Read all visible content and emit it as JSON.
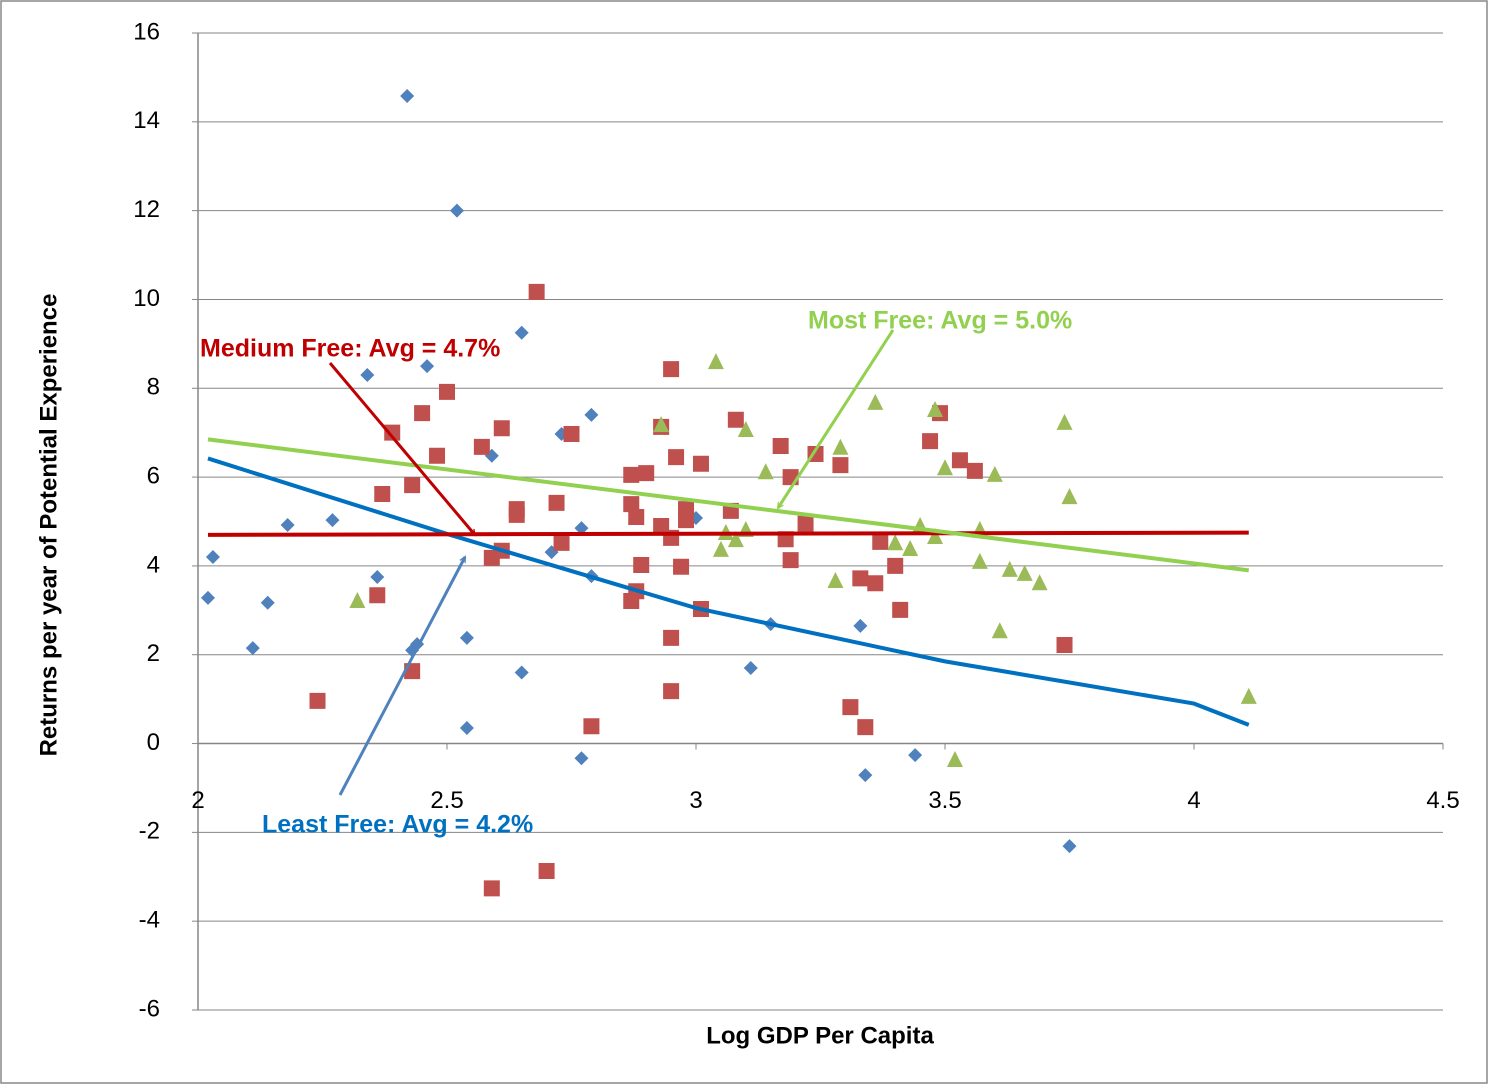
{
  "chart_data": {
    "type": "scatter",
    "x_label": "Log GDP  Per Capita",
    "y_label": "Returns per year of Potential Experience",
    "xlim": [
      2,
      4.5
    ],
    "xticks": [
      2,
      2.5,
      3,
      3.5,
      4,
      4.5
    ],
    "ylim": [
      -6,
      16
    ],
    "yticks": [
      -6,
      -4,
      -2,
      0,
      2,
      4,
      6,
      8,
      10,
      12,
      14,
      16
    ],
    "grid": true,
    "series": [
      {
        "color": "#4f81bd",
        "marker": "diamond",
        "x": [
          2.03,
          2.02,
          2.11,
          2.14,
          2.18,
          2.27,
          2.34,
          2.36,
          2.42,
          2.43,
          2.44,
          2.46,
          2.52,
          2.54,
          2.54,
          2.59,
          2.65,
          2.65,
          2.71,
          2.73,
          2.77,
          2.77,
          2.79,
          2.79,
          3.0,
          3.11,
          3.15,
          3.33,
          3.34,
          3.44,
          3.75
        ],
        "values": [
          4.2,
          3.28,
          2.15,
          3.17,
          4.92,
          5.03,
          8.3,
          3.75,
          14.58,
          2.1,
          2.24,
          8.5,
          12.0,
          2.38,
          0.35,
          6.48,
          1.6,
          9.25,
          4.31,
          6.97,
          -0.33,
          4.85,
          7.4,
          3.77,
          5.08,
          1.7,
          2.69,
          2.65,
          -0.71,
          -0.26,
          -2.31
        ],
        "trend": {
          "color": "#0070c0",
          "x": [
            2.02,
            2.5,
            3.0,
            3.5,
            4.0,
            4.11
          ],
          "values": [
            6.42,
            4.72,
            3.05,
            1.85,
            0.9,
            0.42
          ]
        }
      },
      {
        "color": "#c0504d",
        "marker": "square",
        "x": [
          2.24,
          2.36,
          2.37,
          2.39,
          2.43,
          2.43,
          2.45,
          2.48,
          2.5,
          2.57,
          2.59,
          2.59,
          2.61,
          2.61,
          2.64,
          2.64,
          2.68,
          2.7,
          2.72,
          2.73,
          2.75,
          2.79,
          2.87,
          2.87,
          2.87,
          2.88,
          2.88,
          2.89,
          2.9,
          2.93,
          2.93,
          2.95,
          2.95,
          2.95,
          2.95,
          2.96,
          2.97,
          2.98,
          2.98,
          3.01,
          3.01,
          3.07,
          3.08,
          3.17,
          3.18,
          3.19,
          3.19,
          3.22,
          3.24,
          3.29,
          3.31,
          3.33,
          3.34,
          3.36,
          3.37,
          3.4,
          3.41,
          3.47,
          3.49,
          3.53,
          3.56,
          3.74
        ],
        "values": [
          0.96,
          3.34,
          5.62,
          7.0,
          5.82,
          1.63,
          7.44,
          6.48,
          7.92,
          6.68,
          -3.26,
          4.18,
          7.1,
          4.34,
          5.28,
          5.15,
          10.17,
          -2.87,
          5.42,
          4.52,
          6.97,
          0.39,
          5.39,
          3.21,
          6.05,
          5.1,
          3.43,
          4.02,
          6.09,
          7.13,
          4.9,
          8.43,
          1.18,
          2.38,
          4.63,
          6.45,
          3.98,
          5.28,
          5.03,
          6.3,
          3.03,
          5.24,
          7.29,
          6.7,
          4.6,
          4.13,
          6.0,
          4.95,
          6.52,
          6.27,
          0.82,
          3.72,
          0.37,
          3.61,
          4.54,
          4.0,
          3.01,
          6.81,
          7.44,
          6.38,
          6.14,
          2.22
        ],
        "trend": {
          "color": "#c00000",
          "x": [
            2.02,
            4.11
          ],
          "values": [
            4.7,
            4.75
          ]
        }
      },
      {
        "color": "#9bbb59",
        "marker": "triangle",
        "x": [
          2.32,
          2.93,
          3.04,
          3.05,
          3.06,
          3.08,
          3.1,
          3.1,
          3.14,
          3.28,
          3.29,
          3.36,
          3.4,
          3.43,
          3.45,
          3.48,
          3.48,
          3.5,
          3.52,
          3.57,
          3.57,
          3.6,
          3.61,
          3.63,
          3.66,
          3.69,
          3.74,
          3.75,
          4.11
        ],
        "values": [
          3.21,
          7.17,
          8.59,
          4.36,
          4.74,
          4.58,
          7.06,
          4.81,
          6.11,
          3.66,
          6.66,
          7.67,
          4.51,
          4.38,
          4.9,
          4.65,
          7.51,
          6.2,
          -0.37,
          4.81,
          4.09,
          6.05,
          2.53,
          3.91,
          3.82,
          3.61,
          7.22,
          5.55,
          1.05
        ],
        "trend": {
          "color": "#92d050",
          "x": [
            2.02,
            4.11
          ],
          "values": [
            6.85,
            3.9
          ]
        }
      }
    ],
    "annotations": [
      {
        "text": "Medium Free: Avg = 4.7%",
        "color": "#c00000"
      },
      {
        "text": "Most Free: Avg = 5.0%",
        "color": "#92d050"
      },
      {
        "text": "Least Free: Avg = 4.2%",
        "color": "#0070c0",
        "arrow_color": "#4f81bd"
      }
    ]
  }
}
